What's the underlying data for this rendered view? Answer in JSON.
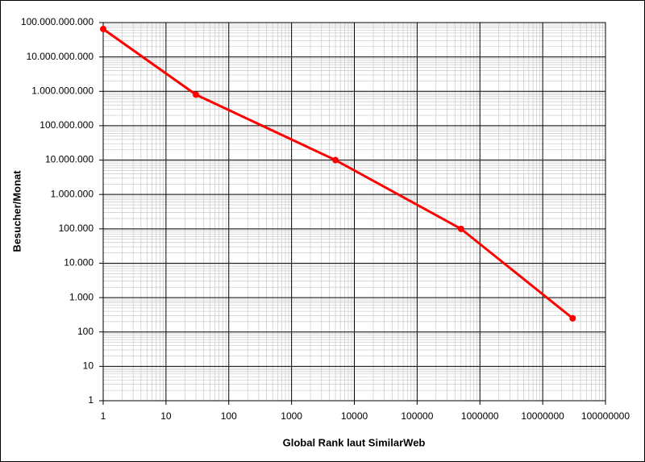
{
  "chart_data": {
    "type": "line",
    "x_label": "Global Rank laut SimilarWeb",
    "y_label": "Besucher/Monat",
    "x": [
      1,
      30,
      5000,
      500000,
      30000000
    ],
    "series": [
      {
        "name": "Besucher/Monat",
        "color": "#ff0000",
        "values": [
          65000000000,
          800000000,
          10000000,
          100000,
          250
        ]
      }
    ],
    "xscale": "log",
    "yscale": "log",
    "xlim": [
      1,
      100000000
    ],
    "ylim": [
      1,
      100000000000
    ],
    "xticks": [
      1,
      10,
      100,
      1000,
      10000,
      100000,
      1000000,
      10000000,
      100000000
    ],
    "yticks": [
      1,
      10,
      {
        "value": 100,
        "label": "100"
      },
      {
        "value": 1000,
        "label": "1.000"
      },
      {
        "value": 10000,
        "label": "10.000"
      },
      {
        "value": 100000,
        "label": "100.000"
      },
      {
        "value": 1000000,
        "label": "1.000.000"
      },
      {
        "value": 10000000,
        "label": "10.000.000"
      },
      {
        "value": 100000000,
        "label": "100.000.000"
      },
      {
        "value": 1000000000,
        "label": "1.000.000.000"
      },
      {
        "value": 10000000000,
        "label": "10.000.000.000"
      },
      {
        "value": 100000000000,
        "label": "100.000.000.000"
      }
    ],
    "grid": true,
    "minor_grid": true,
    "legend": false
  }
}
